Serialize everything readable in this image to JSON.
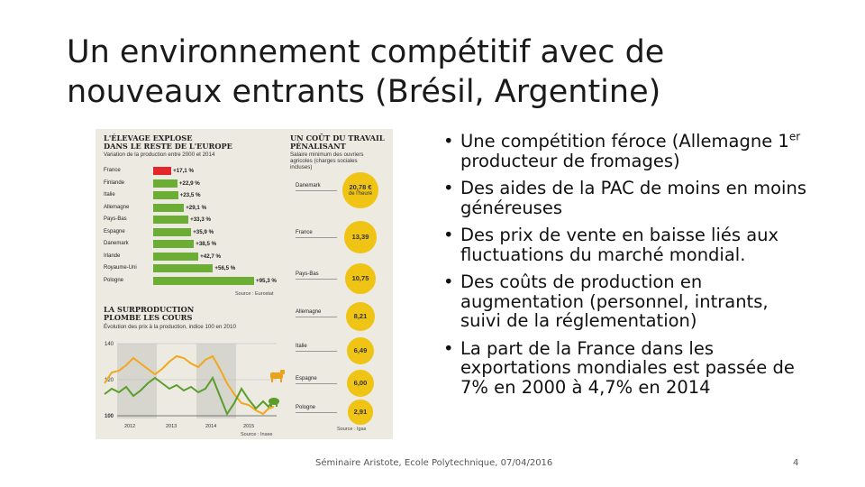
{
  "title": {
    "line1": "Un environnement compétitif avec de",
    "line2": "nouveaux entrants (Brésil, Argentine)"
  },
  "infographic": {
    "elevage": {
      "title1": "L'ÉLEVAGE EXPLOSE",
      "title2": "DANS LE RESTE DE L'EUROPE",
      "subtitle": "Variation de la production entre 2000 et 2014",
      "source": "Source : Eurostat",
      "rows": [
        {
          "country": "France",
          "value": 17.1,
          "label": "+17,1 %"
        },
        {
          "country": "Finlande",
          "value": 22.9,
          "label": "+22,9 %"
        },
        {
          "country": "Italie",
          "value": 23.5,
          "label": "+23,5 %"
        },
        {
          "country": "Allemagne",
          "value": 29.1,
          "label": "+29,1 %"
        },
        {
          "country": "Pays-Bas",
          "value": 33.3,
          "label": "+33,3 %"
        },
        {
          "country": "Espagne",
          "value": 35.9,
          "label": "+35,9 %"
        },
        {
          "country": "Danemark",
          "value": 38.5,
          "label": "+38,5 %"
        },
        {
          "country": "Irlande",
          "value": 42.7,
          "label": "+42,7 %"
        },
        {
          "country": "Royaume-Uni",
          "value": 56.5,
          "label": "+56,5 %"
        },
        {
          "country": "Pologne",
          "value": 95.3,
          "label": "+95,3 %"
        }
      ]
    },
    "travail": {
      "title1": "UN COÛT DU TRAVAIL",
      "title2": "PÉNALISANT",
      "subtitle1": "Salaire minimum des ouvriers",
      "subtitle2": "agricoles (charges sociales",
      "subtitle3": "incluses)",
      "source": "Source : Igas",
      "unit": "de l'heure",
      "rows": [
        {
          "country": "Danemark",
          "value": 20.78,
          "label": "20,78 €"
        },
        {
          "country": "France",
          "value": 13.39,
          "label": "13,39"
        },
        {
          "country": "Pays-Bas",
          "value": 10.75,
          "label": "10,75"
        },
        {
          "country": "Allemagne",
          "value": 8.21,
          "label": "8,21"
        },
        {
          "country": "Italie",
          "value": 6.49,
          "label": "6,49"
        },
        {
          "country": "Espagne",
          "value": 6.0,
          "label": "6,00"
        },
        {
          "country": "Pologne",
          "value": 2.91,
          "label": "2,91"
        }
      ]
    },
    "surproduction": {
      "title1": "LA SURPRODUCTION",
      "title2": "PLOMBE LES COURS",
      "subtitle": "Évolution des prix à la production, indice 100 en 2010",
      "source": "Source : Insee",
      "yticks": [
        "140",
        "120",
        "100"
      ],
      "xticks": [
        "2012",
        "2013",
        "2014",
        "2015"
      ],
      "colors": {
        "orange": "#f2a81d",
        "green": "#5a9d2a"
      }
    },
    "colors": {
      "green": "#6cad35",
      "red": "#e2262a",
      "yellow": "#f0c414"
    }
  },
  "bullets": [
    {
      "pre": "Une compétition féroce (Allemagne 1",
      "sup": "er",
      "post": " producteur de fromages)"
    },
    {
      "text": "Des aides de la PAC de moins en moins généreuses"
    },
    {
      "text": "Des prix de vente en baisse liés aux fluctuations du marché mondial."
    },
    {
      "text": "Des coûts de production en augmentation (personnel, intrants, suivi de la réglementation)"
    },
    {
      "text": "La part de la France dans les exportations mondiales est passée de 7% en 2000 à 4,7% en 2014"
    }
  ],
  "bullet_glyph": "•",
  "footer": {
    "text": "Séminaire Aristote, Ecole Polytechnique, 07/04/2016",
    "page": "4"
  }
}
